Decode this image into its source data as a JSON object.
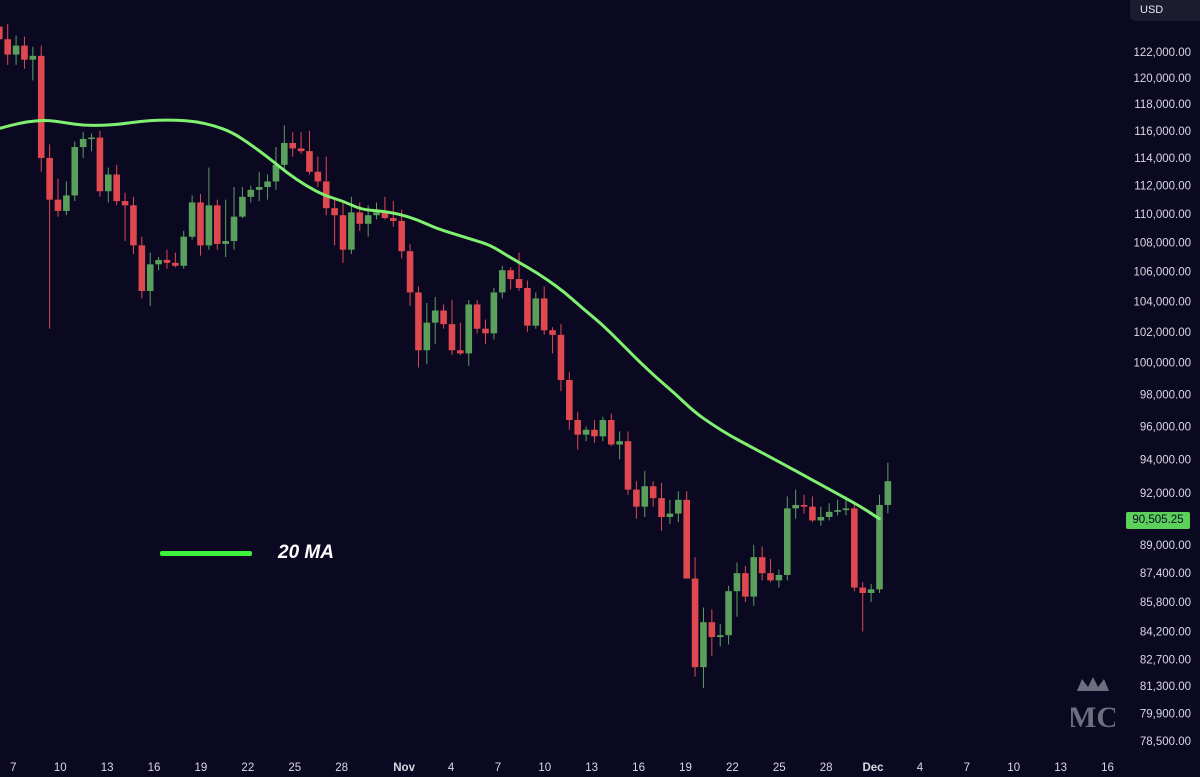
{
  "currency_label": "USD",
  "legend": {
    "label": "20 MA",
    "color": "#3df03b"
  },
  "last_price_label": "90,505.25",
  "colors": {
    "background": "#0b0822",
    "up": "#5aa05c",
    "down": "#e0484f",
    "ma": "#7ff06f"
  },
  "logo_icon": "crown-mc-logo-icon",
  "chart_data": {
    "type": "candlestick",
    "title": "",
    "y_scale": "log",
    "ylim": [
      78000,
      125500
    ],
    "y_ticks": [
      122000,
      120000,
      118000,
      116000,
      114000,
      112000,
      110000,
      108000,
      106000,
      104000,
      102000,
      100000,
      98000,
      96000,
      94000,
      92000,
      89000,
      87400,
      85800,
      84200,
      82700,
      81300,
      79900,
      78500
    ],
    "y_tick_labels": [
      "122,000.00",
      "120,000.00",
      "118,000.00",
      "116,000.00",
      "114,000.00",
      "112,000.00",
      "110,000.00",
      "108,000.00",
      "106,000.00",
      "104,000.00",
      "102,000.00",
      "100,000.00",
      "98,000.00",
      "96,000.00",
      "94,000.00",
      "92,000.00",
      "89,000.00",
      "87,400.00",
      "85,800.00",
      "84,200.00",
      "82,700.00",
      "81,300.00",
      "79,900.00",
      "78,500.00"
    ],
    "x_ticks": [
      {
        "label": "7",
        "day": -24
      },
      {
        "label": "10",
        "day": -21
      },
      {
        "label": "13",
        "day": -18
      },
      {
        "label": "16",
        "day": -15
      },
      {
        "label": "19",
        "day": -12
      },
      {
        "label": "22",
        "day": -9
      },
      {
        "label": "25",
        "day": -6
      },
      {
        "label": "28",
        "day": -3
      },
      {
        "label": "Nov",
        "day": 1,
        "bold": true
      },
      {
        "label": "4",
        "day": 4
      },
      {
        "label": "7",
        "day": 7
      },
      {
        "label": "10",
        "day": 10
      },
      {
        "label": "13",
        "day": 13
      },
      {
        "label": "16",
        "day": 16
      },
      {
        "label": "19",
        "day": 19
      },
      {
        "label": "22",
        "day": 22
      },
      {
        "label": "25",
        "day": 25
      },
      {
        "label": "28",
        "day": 28
      },
      {
        "label": "Dec",
        "day": 31,
        "bold": true
      },
      {
        "label": "4",
        "day": 34
      },
      {
        "label": "7",
        "day": 37
      },
      {
        "label": "10",
        "day": 40
      },
      {
        "label": "13",
        "day": 43
      },
      {
        "label": "16",
        "day": 46
      }
    ],
    "candles": [
      {
        "o": 124000,
        "h": 125300,
        "l": 121500,
        "c": 123000
      },
      {
        "o": 123000,
        "h": 124200,
        "l": 121000,
        "c": 121800
      },
      {
        "o": 121800,
        "h": 123300,
        "l": 121000,
        "c": 122500
      },
      {
        "o": 122500,
        "h": 123200,
        "l": 120700,
        "c": 121400
      },
      {
        "o": 121400,
        "h": 122400,
        "l": 119800,
        "c": 121700
      },
      {
        "o": 121700,
        "h": 122500,
        "l": 113000,
        "c": 114000
      },
      {
        "o": 114000,
        "h": 115000,
        "l": 102200,
        "c": 111000
      },
      {
        "o": 111000,
        "h": 112500,
        "l": 109800,
        "c": 110200
      },
      {
        "o": 110200,
        "h": 112300,
        "l": 109900,
        "c": 111300
      },
      {
        "o": 111300,
        "h": 115200,
        "l": 110900,
        "c": 114800
      },
      {
        "o": 114800,
        "h": 115900,
        "l": 114000,
        "c": 115400
      },
      {
        "o": 115400,
        "h": 115800,
        "l": 114500,
        "c": 115500
      },
      {
        "o": 115500,
        "h": 116000,
        "l": 111200,
        "c": 111600
      },
      {
        "o": 111600,
        "h": 113300,
        "l": 110800,
        "c": 112800
      },
      {
        "o": 112800,
        "h": 113500,
        "l": 110600,
        "c": 110900
      },
      {
        "o": 110900,
        "h": 111500,
        "l": 108100,
        "c": 110600
      },
      {
        "o": 110600,
        "h": 111200,
        "l": 107200,
        "c": 107800
      },
      {
        "o": 107800,
        "h": 108400,
        "l": 104200,
        "c": 104700
      },
      {
        "o": 104700,
        "h": 107300,
        "l": 103700,
        "c": 106500
      },
      {
        "o": 106500,
        "h": 107000,
        "l": 106100,
        "c": 106800
      },
      {
        "o": 106800,
        "h": 107500,
        "l": 106200,
        "c": 106600
      },
      {
        "o": 106600,
        "h": 107300,
        "l": 106300,
        "c": 106400
      },
      {
        "o": 106400,
        "h": 108800,
        "l": 106200,
        "c": 108400
      },
      {
        "o": 108400,
        "h": 111300,
        "l": 108200,
        "c": 110800
      },
      {
        "o": 110800,
        "h": 111400,
        "l": 107100,
        "c": 107800
      },
      {
        "o": 107800,
        "h": 113300,
        "l": 107500,
        "c": 110600
      },
      {
        "o": 110600,
        "h": 111000,
        "l": 107500,
        "c": 107900
      },
      {
        "o": 107900,
        "h": 111000,
        "l": 107000,
        "c": 108100
      },
      {
        "o": 108100,
        "h": 111900,
        "l": 107500,
        "c": 109800
      },
      {
        "o": 109800,
        "h": 111900,
        "l": 109700,
        "c": 111200
      },
      {
        "o": 111200,
        "h": 112000,
        "l": 110800,
        "c": 111700
      },
      {
        "o": 111700,
        "h": 113000,
        "l": 110900,
        "c": 111900
      },
      {
        "o": 111900,
        "h": 112800,
        "l": 111000,
        "c": 112300
      },
      {
        "o": 112300,
        "h": 114800,
        "l": 111700,
        "c": 113500
      },
      {
        "o": 113500,
        "h": 116400,
        "l": 113200,
        "c": 115100
      },
      {
        "o": 115100,
        "h": 115900,
        "l": 114100,
        "c": 114700
      },
      {
        "o": 114700,
        "h": 115900,
        "l": 114300,
        "c": 114500
      },
      {
        "o": 114500,
        "h": 116000,
        "l": 112800,
        "c": 113000
      },
      {
        "o": 113000,
        "h": 114100,
        "l": 111900,
        "c": 112300
      },
      {
        "o": 112300,
        "h": 114100,
        "l": 109900,
        "c": 110400
      },
      {
        "o": 110400,
        "h": 111000,
        "l": 107800,
        "c": 109900
      },
      {
        "o": 109900,
        "h": 110800,
        "l": 106600,
        "c": 107500
      },
      {
        "o": 107500,
        "h": 111200,
        "l": 107200,
        "c": 110100
      },
      {
        "o": 110100,
        "h": 110800,
        "l": 108800,
        "c": 109300
      },
      {
        "o": 109300,
        "h": 110600,
        "l": 108400,
        "c": 109900
      },
      {
        "o": 109900,
        "h": 110800,
        "l": 109600,
        "c": 110100
      },
      {
        "o": 110100,
        "h": 111200,
        "l": 109600,
        "c": 109700
      },
      {
        "o": 109700,
        "h": 110900,
        "l": 109100,
        "c": 109500
      },
      {
        "o": 109500,
        "h": 110300,
        "l": 106900,
        "c": 107400
      },
      {
        "o": 107400,
        "h": 107900,
        "l": 103700,
        "c": 104600
      },
      {
        "o": 104600,
        "h": 105000,
        "l": 99700,
        "c": 100800
      },
      {
        "o": 100800,
        "h": 103900,
        "l": 99900,
        "c": 102600
      },
      {
        "o": 102600,
        "h": 104300,
        "l": 101200,
        "c": 103400
      },
      {
        "o": 103400,
        "h": 103800,
        "l": 102200,
        "c": 102500
      },
      {
        "o": 102500,
        "h": 104100,
        "l": 100500,
        "c": 100800
      },
      {
        "o": 100800,
        "h": 102600,
        "l": 100500,
        "c": 100600
      },
      {
        "o": 100600,
        "h": 104100,
        "l": 99800,
        "c": 103800
      },
      {
        "o": 103800,
        "h": 104100,
        "l": 101900,
        "c": 102200
      },
      {
        "o": 102200,
        "h": 102800,
        "l": 101200,
        "c": 101900
      },
      {
        "o": 101900,
        "h": 104900,
        "l": 101500,
        "c": 104600
      },
      {
        "o": 104600,
        "h": 106400,
        "l": 104200,
        "c": 106100
      },
      {
        "o": 106100,
        "h": 106300,
        "l": 104800,
        "c": 105500
      },
      {
        "o": 105500,
        "h": 107300,
        "l": 104700,
        "c": 104900
      },
      {
        "o": 104900,
        "h": 105400,
        "l": 102000,
        "c": 102400
      },
      {
        "o": 102400,
        "h": 104600,
        "l": 102200,
        "c": 104200
      },
      {
        "o": 104200,
        "h": 105000,
        "l": 101800,
        "c": 102100
      },
      {
        "o": 102100,
        "h": 102300,
        "l": 100600,
        "c": 101800
      },
      {
        "o": 101800,
        "h": 102500,
        "l": 98200,
        "c": 98900
      },
      {
        "o": 98900,
        "h": 99400,
        "l": 95800,
        "c": 96400
      },
      {
        "o": 96400,
        "h": 96900,
        "l": 94600,
        "c": 95500
      },
      {
        "o": 95500,
        "h": 96000,
        "l": 95100,
        "c": 95800
      },
      {
        "o": 95800,
        "h": 96400,
        "l": 95000,
        "c": 95400
      },
      {
        "o": 95400,
        "h": 96600,
        "l": 95100,
        "c": 96400
      },
      {
        "o": 96400,
        "h": 96800,
        "l": 94800,
        "c": 94900
      },
      {
        "o": 94900,
        "h": 95700,
        "l": 94000,
        "c": 95100
      },
      {
        "o": 95100,
        "h": 95700,
        "l": 91900,
        "c": 92200
      },
      {
        "o": 92200,
        "h": 92700,
        "l": 90500,
        "c": 91200
      },
      {
        "o": 91200,
        "h": 93300,
        "l": 90600,
        "c": 92400
      },
      {
        "o": 92400,
        "h": 92700,
        "l": 91200,
        "c": 91700
      },
      {
        "o": 91700,
        "h": 92600,
        "l": 89800,
        "c": 90600
      },
      {
        "o": 90600,
        "h": 91600,
        "l": 90200,
        "c": 90800
      },
      {
        "o": 90800,
        "h": 92100,
        "l": 90300,
        "c": 91600
      },
      {
        "o": 91600,
        "h": 92100,
        "l": 87300,
        "c": 87100
      },
      {
        "o": 87100,
        "h": 88300,
        "l": 81800,
        "c": 82300
      },
      {
        "o": 82300,
        "h": 85500,
        "l": 81200,
        "c": 84700
      },
      {
        "o": 84700,
        "h": 85400,
        "l": 82900,
        "c": 83900
      },
      {
        "o": 83900,
        "h": 84600,
        "l": 83400,
        "c": 84000
      },
      {
        "o": 84000,
        "h": 86700,
        "l": 83500,
        "c": 86400
      },
      {
        "o": 86400,
        "h": 88000,
        "l": 85000,
        "c": 87400
      },
      {
        "o": 87400,
        "h": 87800,
        "l": 85800,
        "c": 86100
      },
      {
        "o": 86100,
        "h": 89000,
        "l": 85600,
        "c": 88300
      },
      {
        "o": 88300,
        "h": 88900,
        "l": 87000,
        "c": 87400
      },
      {
        "o": 87400,
        "h": 88200,
        "l": 86900,
        "c": 87000
      },
      {
        "o": 87000,
        "h": 87600,
        "l": 86600,
        "c": 87300
      },
      {
        "o": 87300,
        "h": 91800,
        "l": 87000,
        "c": 91100
      },
      {
        "o": 91100,
        "h": 92200,
        "l": 90500,
        "c": 91300
      },
      {
        "o": 91300,
        "h": 91900,
        "l": 90800,
        "c": 91200
      },
      {
        "o": 91200,
        "h": 91800,
        "l": 90300,
        "c": 90400
      },
      {
        "o": 90400,
        "h": 91200,
        "l": 90100,
        "c": 90600
      },
      {
        "o": 90600,
        "h": 91400,
        "l": 90400,
        "c": 90900
      },
      {
        "o": 90900,
        "h": 91600,
        "l": 90700,
        "c": 91000
      },
      {
        "o": 91000,
        "h": 91800,
        "l": 90700,
        "c": 91100
      },
      {
        "o": 91100,
        "h": 91400,
        "l": 86400,
        "c": 86600
      },
      {
        "o": 86600,
        "h": 86900,
        "l": 84200,
        "c": 86300
      },
      {
        "o": 86300,
        "h": 86800,
        "l": 85800,
        "c": 86500
      },
      {
        "o": 86500,
        "h": 91900,
        "l": 86300,
        "c": 91300
      },
      {
        "o": 91300,
        "h": 93800,
        "l": 90800,
        "c": 92700
      }
    ],
    "ma_20": [
      116000,
      116400,
      116700,
      116800,
      116600,
      116400,
      116400,
      116500,
      116700,
      116800,
      116800,
      116700,
      116400,
      115900,
      115000,
      114000,
      112900,
      112000,
      111300,
      110900,
      110300,
      110200,
      110000,
      109600,
      109000,
      108600,
      108200,
      107800,
      107000,
      106300,
      105500,
      104600,
      103500,
      102500,
      101300,
      100100,
      99000,
      98000,
      96900,
      96100,
      95400,
      94800,
      94200,
      93600,
      93000,
      92400,
      91800,
      91200,
      90500
    ]
  }
}
